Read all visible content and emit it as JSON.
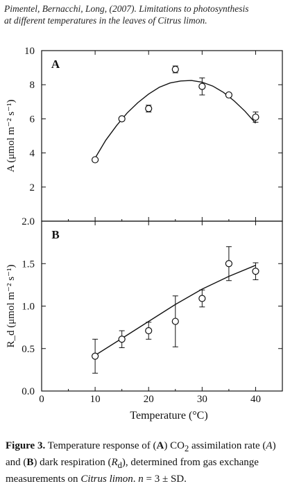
{
  "header": {
    "line1": "Pimentel, Bernacchi, Long, (2007). Limitations to photosynthesis",
    "line2": "at different temperatures in the leaves of Citrus limon."
  },
  "chart_data": [
    {
      "panel": "A",
      "type": "scatter",
      "fit": "curve",
      "xlabel": "",
      "ylabel": "A (μmol m⁻² s⁻¹)",
      "xlim": [
        0,
        45
      ],
      "ylim": [
        0,
        10
      ],
      "yticks": [
        2,
        4,
        6,
        8,
        10
      ],
      "x": [
        10,
        15,
        20,
        25,
        30,
        35,
        40
      ],
      "y": [
        3.6,
        6.0,
        6.6,
        8.9,
        7.9,
        7.4,
        6.1
      ],
      "err": [
        0.0,
        0.0,
        0.2,
        0.2,
        0.5,
        0.0,
        0.3
      ],
      "fit_x": [
        10,
        12,
        14,
        16,
        18,
        20,
        22,
        24,
        26,
        28,
        30,
        32,
        34,
        36,
        38,
        40
      ],
      "fit_y": [
        3.7,
        4.75,
        5.6,
        6.35,
        6.95,
        7.45,
        7.85,
        8.1,
        8.22,
        8.25,
        8.15,
        7.92,
        7.55,
        7.05,
        6.45,
        5.75
      ]
    },
    {
      "panel": "B",
      "type": "scatter",
      "fit": "curve",
      "xlabel": "Temperature (°C)",
      "ylabel": "R_d (μmol m⁻² s⁻¹)",
      "xlim": [
        0,
        45
      ],
      "ylim": [
        0,
        2.0
      ],
      "yticks": [
        0.0,
        0.5,
        1.0,
        1.5,
        2.0
      ],
      "xticks": [
        0,
        10,
        20,
        30,
        40
      ],
      "x": [
        10,
        15,
        20,
        25,
        30,
        35,
        40
      ],
      "y": [
        0.41,
        0.61,
        0.71,
        0.82,
        1.09,
        1.5,
        1.41
      ],
      "err": [
        0.2,
        0.1,
        0.1,
        0.3,
        0.1,
        0.2,
        0.1
      ],
      "fit_x": [
        10,
        15,
        20,
        25,
        30,
        35,
        40
      ],
      "fit_y": [
        0.42,
        0.62,
        0.82,
        1.02,
        1.2,
        1.35,
        1.48
      ]
    }
  ],
  "caption": {
    "fig_label": "Figure 3.",
    "t1": " Temperature response of (",
    "a1": "A",
    "t2": ") CO",
    "sub2": "2",
    "t3": " assimilation rate (",
    "a_var": "A",
    "t4": ") and (",
    "b1": "B",
    "t5": ") dark respiration (",
    "r_var": "R",
    "sub_d": "d",
    "t6": "), determined from gas exchange measurements on ",
    "species": "Citrus limon",
    "t7": ". ",
    "n_var": "n",
    "t8": " = 3 ± SD."
  }
}
